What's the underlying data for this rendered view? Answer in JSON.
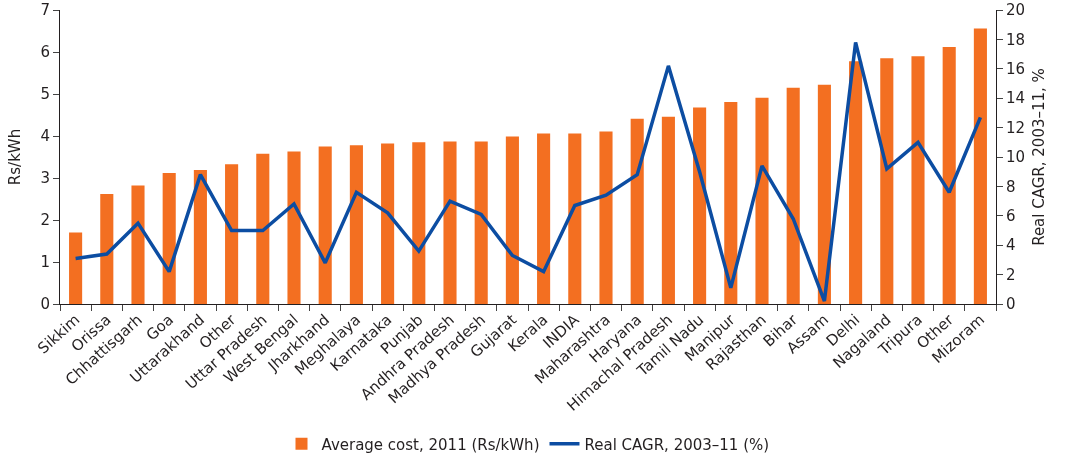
{
  "chart_data": {
    "type": "bar",
    "ylabel": "Rs/kWh",
    "y2label": "Real CAGR, 2003–11, %",
    "categories": [
      "Sikkim",
      "Orissa",
      "Chhattisgarh",
      "Goa",
      "Uttarakhand",
      "Other",
      "Uttar Pradesh",
      "West Bengal",
      "Jharkhand",
      "Meghalaya",
      "Karnataka",
      "Punjab",
      "Andhra Pradesh",
      "Madhya Pradesh",
      "Gujarat",
      "Kerala",
      "INDIA",
      "Maharashtra",
      "Haryana",
      "Himachal Pradesh",
      "Tamil Nadu",
      "Manipur",
      "Rajasthan",
      "Bihar",
      "Assam",
      "Delhi",
      "Nagaland",
      "Tripura",
      "Other",
      "Mizoram"
    ],
    "series": [
      {
        "name": "Average cost, 2011 (Rs/kWh)",
        "color": "#f36f21",
        "values": [
          1.7,
          2.62,
          2.82,
          3.12,
          3.19,
          3.33,
          3.58,
          3.63,
          3.75,
          3.78,
          3.82,
          3.85,
          3.87,
          3.87,
          3.99,
          4.06,
          4.06,
          4.11,
          4.41,
          4.46,
          4.68,
          4.81,
          4.91,
          5.15,
          5.22,
          5.78,
          5.85,
          5.9,
          6.12,
          6.56
        ]
      },
      {
        "name": "Real CAGR, 2003–11 (%)",
        "type": "line",
        "axis": "y2",
        "color": "#0c4da2",
        "values": [
          3.1,
          3.4,
          5.5,
          2.2,
          8.8,
          5.0,
          5.0,
          6.8,
          2.8,
          7.6,
          6.2,
          3.6,
          7.0,
          6.1,
          3.3,
          2.2,
          6.7,
          7.4,
          8.8,
          16.2,
          9.0,
          1.1,
          9.4,
          5.8,
          0.2,
          17.8,
          9.2,
          11.0,
          7.6,
          12.7
        ]
      }
    ],
    "ylim": [
      0,
      7
    ],
    "yticks": [
      0,
      1,
      2,
      3,
      4,
      5,
      6,
      7
    ],
    "y2lim": [
      0,
      20
    ],
    "y2ticks": [
      0,
      2,
      4,
      6,
      8,
      10,
      12,
      14,
      16,
      18,
      20
    ],
    "grid": false,
    "legend": "bottom",
    "marker": "none",
    "line_style": "solid"
  }
}
